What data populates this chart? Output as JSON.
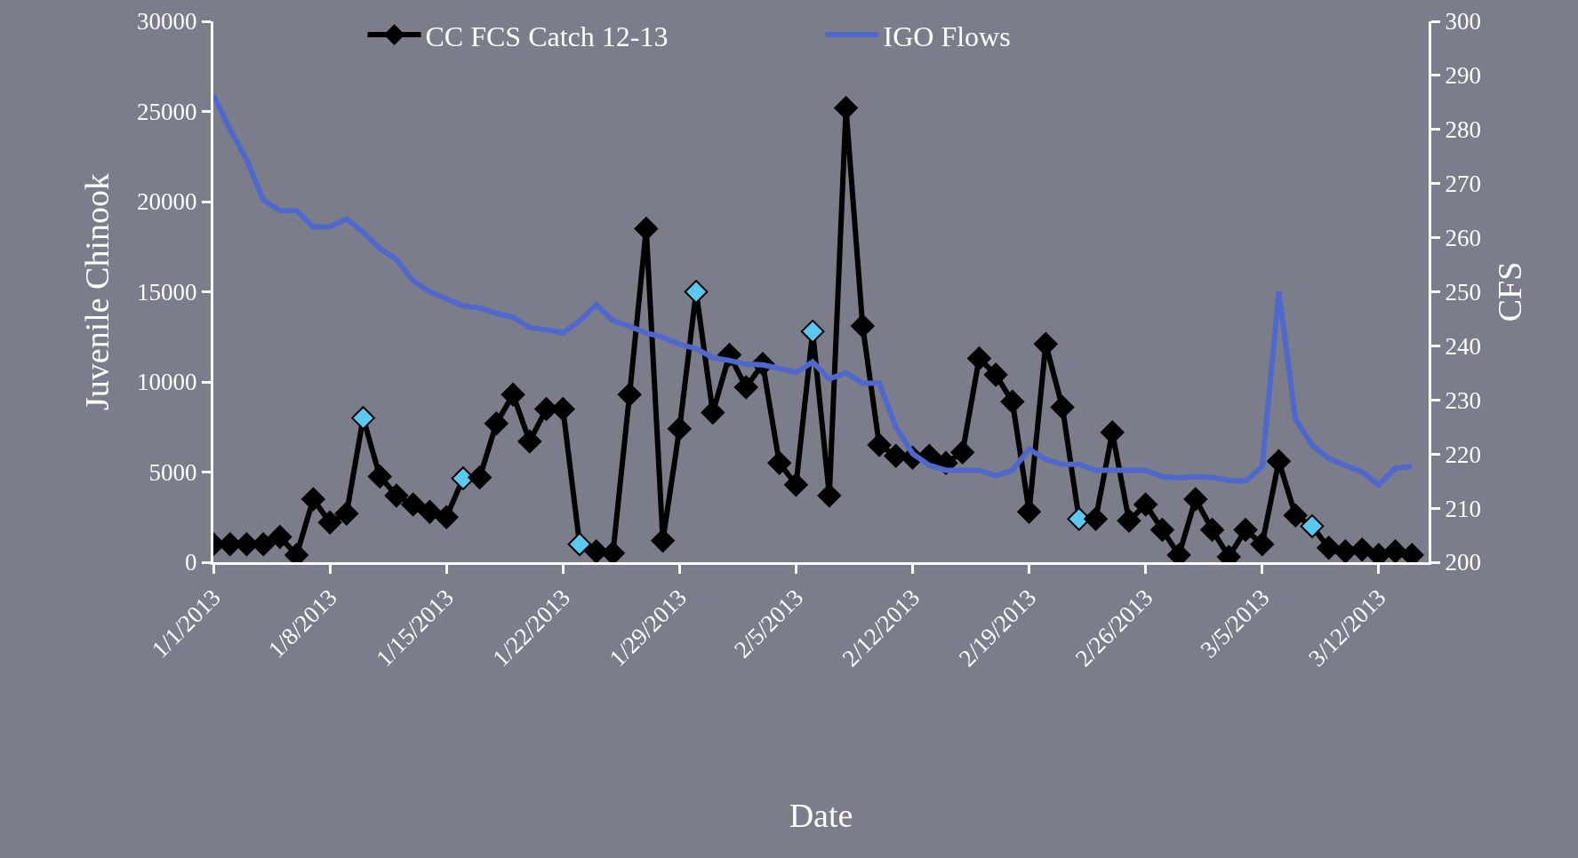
{
  "chart_data": {
    "type": "line",
    "xlabel": "Date",
    "ylabel": "Juvenile Chinook",
    "y2label": "CFS",
    "x": [
      "2013-01-01",
      "2013-01-02",
      "2013-01-03",
      "2013-01-04",
      "2013-01-05",
      "2013-01-06",
      "2013-01-07",
      "2013-01-08",
      "2013-01-09",
      "2013-01-10",
      "2013-01-11",
      "2013-01-12",
      "2013-01-13",
      "2013-01-14",
      "2013-01-15",
      "2013-01-16",
      "2013-01-17",
      "2013-01-18",
      "2013-01-19",
      "2013-01-20",
      "2013-01-21",
      "2013-01-22",
      "2013-01-23",
      "2013-01-24",
      "2013-01-25",
      "2013-01-26",
      "2013-01-27",
      "2013-01-28",
      "2013-01-29",
      "2013-01-30",
      "2013-01-31",
      "2013-02-01",
      "2013-02-02",
      "2013-02-03",
      "2013-02-04",
      "2013-02-05",
      "2013-02-06",
      "2013-02-07",
      "2013-02-08",
      "2013-02-09",
      "2013-02-10",
      "2013-02-11",
      "2013-02-12",
      "2013-02-13",
      "2013-02-14",
      "2013-02-15",
      "2013-02-16",
      "2013-02-17",
      "2013-02-18",
      "2013-02-19",
      "2013-02-20",
      "2013-02-21",
      "2013-02-22",
      "2013-02-23",
      "2013-02-24",
      "2013-02-25",
      "2013-02-26",
      "2013-02-27",
      "2013-02-28",
      "2013-03-01",
      "2013-03-02",
      "2013-03-03",
      "2013-03-04",
      "2013-03-05",
      "2013-03-06",
      "2013-03-07",
      "2013-03-08",
      "2013-03-09",
      "2013-03-10",
      "2013-03-11",
      "2013-03-12",
      "2013-03-13",
      "2013-03-14"
    ],
    "series": [
      {
        "name": "CC FCS Catch 12-13",
        "color": "#000000",
        "marker": "diamond",
        "colors": [
          "#000000",
          "#000000",
          "#000000",
          "#000000",
          "#000000",
          "#000000",
          "#000000",
          "#000000",
          "#000000",
          "#5bc8f0",
          "#000000",
          "#000000",
          "#000000",
          "#000000",
          "#000000",
          "#5bc8f0",
          "#000000",
          "#000000",
          "#000000",
          "#000000",
          "#000000",
          "#000000",
          "#5bc8f0",
          "#000000",
          "#000000",
          "#000000",
          "#000000",
          "#000000",
          "#000000",
          "#5bc8f0",
          "#000000",
          "#000000",
          "#000000",
          "#000000",
          "#000000",
          "#000000",
          "#5bc8f0",
          "#000000",
          "#000000",
          "#000000",
          "#000000",
          "#000000",
          "#000000",
          "#000000",
          "#000000",
          "#000000",
          "#000000",
          "#000000",
          "#000000",
          "#000000",
          "#000000",
          "#000000",
          "#5bc8f0",
          "#000000",
          "#000000",
          "#000000",
          "#000000",
          "#000000",
          "#000000",
          "#000000",
          "#000000",
          "#000000",
          "#000000",
          "#000000",
          "#000000",
          "#000000",
          "#5bc8f0",
          "#000000",
          "#000000",
          "#000000",
          "#000000",
          "#000000",
          "#000000"
        ],
        "values": [
          1000,
          1000,
          1000,
          1000,
          1400,
          400,
          3500,
          2200,
          2700,
          8000,
          4750,
          3700,
          3200,
          2800,
          2500,
          4650,
          4700,
          7700,
          9300,
          6700,
          8500,
          8500,
          1000,
          600,
          500,
          9300,
          18500,
          1200,
          7400,
          15000,
          8300,
          11500,
          9700,
          11000,
          5500,
          4300,
          12800,
          3700,
          25200,
          13100,
          6500,
          5900,
          5800,
          5900,
          5500,
          6100,
          11300,
          10400,
          8900,
          2800,
          12100,
          8600,
          2400,
          2400,
          7200,
          2300,
          3200,
          1800,
          400,
          3500,
          1800,
          300,
          1800,
          1000,
          5600,
          2600,
          2000,
          800,
          600,
          700,
          400,
          600,
          400
        ]
      },
      {
        "name": "IGO Flows",
        "color": "#5068cc",
        "axis": "y2",
        "marker": "none",
        "values": [
          286.4,
          280,
          274.4,
          267,
          265,
          265,
          262,
          262,
          263.5,
          261,
          258,
          256,
          252,
          250,
          248.7,
          247.4,
          247,
          246,
          245.3,
          243.4,
          243,
          242.4,
          244.6,
          247.6,
          244.7,
          243.6,
          242.4,
          241.6,
          240.3,
          239.5,
          237.8,
          237.3,
          236.6,
          236.5,
          235.8,
          235.1,
          237,
          233.9,
          235,
          233.1,
          233.1,
          225,
          220.1,
          217.9,
          217,
          217,
          217,
          216,
          217,
          220.9,
          219,
          218.1,
          218.1,
          217,
          217,
          217,
          217,
          215.8,
          215.6,
          215.8,
          215.7,
          215.1,
          215,
          217.7,
          250,
          226.5,
          221.6,
          219.2,
          217.9,
          216.7,
          214.3,
          217.4,
          217.7
        ]
      }
    ],
    "xlim": [
      "2013-01-01",
      "2013-03-15"
    ],
    "xticks": [
      {
        "value": "2013-01-01",
        "label": "1/1/2013"
      },
      {
        "value": "2013-01-08",
        "label": "1/8/2013"
      },
      {
        "value": "2013-01-15",
        "label": "1/15/2013"
      },
      {
        "value": "2013-01-22",
        "label": "1/22/2013"
      },
      {
        "value": "2013-01-29",
        "label": "1/29/2013"
      },
      {
        "value": "2013-02-05",
        "label": "2/5/2013"
      },
      {
        "value": "2013-02-12",
        "label": "2/12/2013"
      },
      {
        "value": "2013-02-19",
        "label": "2/19/2013"
      },
      {
        "value": "2013-02-26",
        "label": "2/26/2013"
      },
      {
        "value": "2013-03-05",
        "label": "3/5/2013"
      },
      {
        "value": "2013-03-12",
        "label": "3/12/2013"
      }
    ],
    "ylim": [
      0,
      30000
    ],
    "yticks": [
      0,
      5000,
      10000,
      15000,
      20000,
      25000,
      30000
    ],
    "y2lim": [
      200,
      300
    ],
    "y2ticks": [
      200,
      210,
      220,
      230,
      240,
      250,
      260,
      270,
      280,
      290,
      300
    ],
    "grid": false,
    "legend": "top",
    "line_style": "solid"
  }
}
